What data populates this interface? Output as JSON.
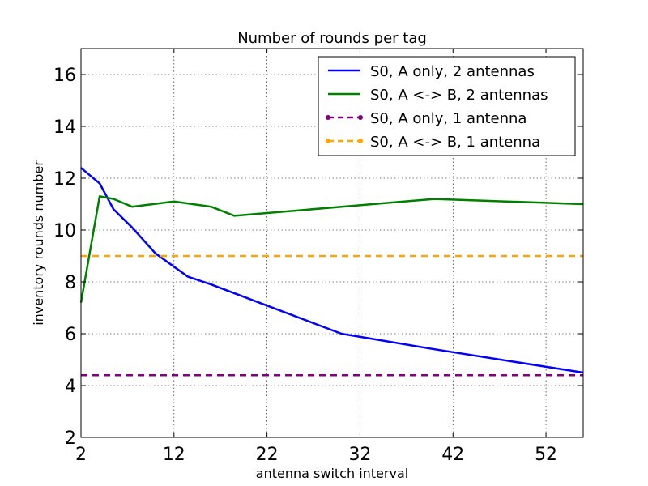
{
  "chart_data": {
    "type": "line",
    "title": "Number of rounds per tag",
    "xlabel": "antenna switch interval",
    "ylabel": "inventory rounds number",
    "xlim": [
      2,
      56
    ],
    "ylim": [
      2,
      17
    ],
    "x_ticks": [
      2,
      12,
      22,
      32,
      42,
      52
    ],
    "y_ticks": [
      2,
      4,
      6,
      8,
      10,
      12,
      14,
      16
    ],
    "grid": true,
    "legend_position": "top-right",
    "series": [
      {
        "name": "S0, A only, 2 antennas",
        "color": "#0000ff",
        "style": "solid",
        "x": [
          2,
          4,
          5.5,
          7.5,
          10,
          13.5,
          16,
          30,
          40,
          56
        ],
        "y": [
          12.4,
          11.8,
          10.8,
          10.1,
          9.1,
          8.2,
          7.9,
          6.0,
          5.4,
          4.5
        ]
      },
      {
        "name": "S0, A <-> B, 2 antennas",
        "color": "#008000",
        "style": "solid",
        "x": [
          2,
          4,
          5.5,
          7.5,
          12,
          16,
          18.5,
          40,
          56
        ],
        "y": [
          7.2,
          11.3,
          11.2,
          10.9,
          11.1,
          10.9,
          10.55,
          11.2,
          11.0
        ]
      },
      {
        "name": "S0, A only, 1 antenna",
        "color": "#800080",
        "style": "dashed",
        "x": [
          2,
          56
        ],
        "y": [
          4.4,
          4.4
        ]
      },
      {
        "name": "S0, A <-> B, 1 antenna",
        "color": "#ffa500",
        "style": "dashed",
        "x": [
          2,
          56
        ],
        "y": [
          9.0,
          9.0
        ]
      }
    ]
  }
}
